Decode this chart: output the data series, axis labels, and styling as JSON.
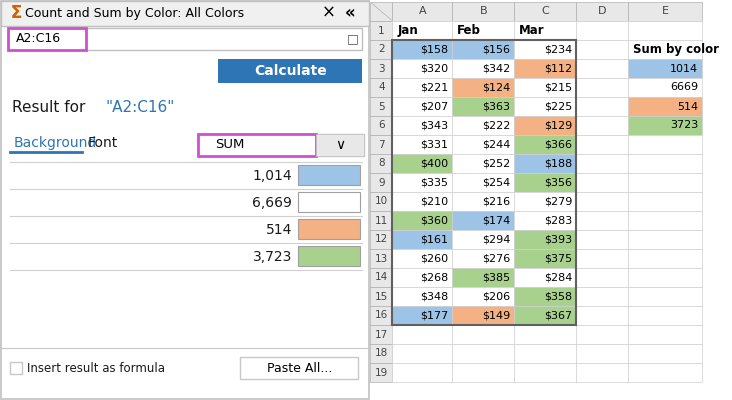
{
  "panel_border": "#c0c0c0",
  "title": "Count and Sum by Color: All Colors",
  "range_text": "A2:C16",
  "result_label": "Result for",
  "result_range": "\"A2:C16\"",
  "bg_tab": "Background",
  "font_tab": "Font",
  "sum_values": [
    "1,014",
    "6,669",
    "514",
    "3,723"
  ],
  "sum_colors": [
    "#9dc3e6",
    "#ffffff",
    "#f4b183",
    "#a9d18e"
  ],
  "calc_btn_color": "#2e75b6",
  "calc_btn_text": "Calculate",
  "tab_underline_color": "#2e75b6",
  "paste_btn_text": "Paste All...",
  "checkbox_text": "Insert result as formula",
  "col_headers": [
    "A",
    "B",
    "C",
    "D",
    "E"
  ],
  "row_headers": [
    "1",
    "2",
    "3",
    "4",
    "5",
    "6",
    "7",
    "8",
    "9",
    "10",
    "11",
    "12",
    "13",
    "14",
    "15",
    "16",
    "17",
    "18",
    "19"
  ],
  "header_labels": [
    "Jan",
    "Feb",
    "Mar"
  ],
  "col_values": [
    [
      "$158",
      "$320",
      "$221",
      "$207",
      "$343",
      "$331",
      "$400",
      "$335",
      "$210",
      "$360",
      "$161",
      "$260",
      "$268",
      "$348",
      "$177"
    ],
    [
      "$156",
      "$342",
      "$124",
      "$363",
      "$222",
      "$244",
      "$252",
      "$254",
      "$216",
      "$174",
      "$294",
      "$276",
      "$385",
      "$206",
      "$149"
    ],
    [
      "$234",
      "$112",
      "$215",
      "$225",
      "$129",
      "$366",
      "$188",
      "$356",
      "$279",
      "$283",
      "$393",
      "$375",
      "$284",
      "$358",
      "$367"
    ]
  ],
  "cell_colors": {
    "A": {
      "2": "#9dc3e6",
      "3": "#ffffff",
      "4": "#ffffff",
      "5": "#ffffff",
      "6": "#ffffff",
      "7": "#ffffff",
      "8": "#a9d18e",
      "9": "#ffffff",
      "10": "#ffffff",
      "11": "#a9d18e",
      "12": "#9dc3e6",
      "13": "#ffffff",
      "14": "#ffffff",
      "15": "#ffffff",
      "16": "#9dc3e6"
    },
    "B": {
      "2": "#9dc3e6",
      "3": "#ffffff",
      "4": "#f4b183",
      "5": "#a9d18e",
      "6": "#ffffff",
      "7": "#ffffff",
      "8": "#ffffff",
      "9": "#ffffff",
      "10": "#ffffff",
      "11": "#9dc3e6",
      "12": "#ffffff",
      "13": "#ffffff",
      "14": "#a9d18e",
      "15": "#ffffff",
      "16": "#f4b183"
    },
    "C": {
      "2": "#ffffff",
      "3": "#f4b183",
      "4": "#ffffff",
      "5": "#ffffff",
      "6": "#f4b183",
      "7": "#a9d18e",
      "8": "#9dc3e6",
      "9": "#a9d18e",
      "10": "#ffffff",
      "11": "#ffffff",
      "12": "#a9d18e",
      "13": "#a9d18e",
      "14": "#ffffff",
      "15": "#a9d18e",
      "16": "#a9d18e"
    }
  },
  "e_colors": {
    "3": "#9dc3e6",
    "5": "#f4b183",
    "6": "#a9d18e"
  },
  "e_values": {
    "2": "Sum by color",
    "3": "1014",
    "4": "6669",
    "5": "514",
    "6": "3723"
  },
  "grid_color": "#d0d0d0",
  "white": "#ffffff",
  "black": "#000000",
  "light_gray": "#e8e8e8",
  "medium_gray": "#c8c8c8",
  "dark_text": "#1a1a1a",
  "blue_text": "#2e75b6",
  "header_gray": "#e8e8e8",
  "header_border": "#b0b0b0"
}
